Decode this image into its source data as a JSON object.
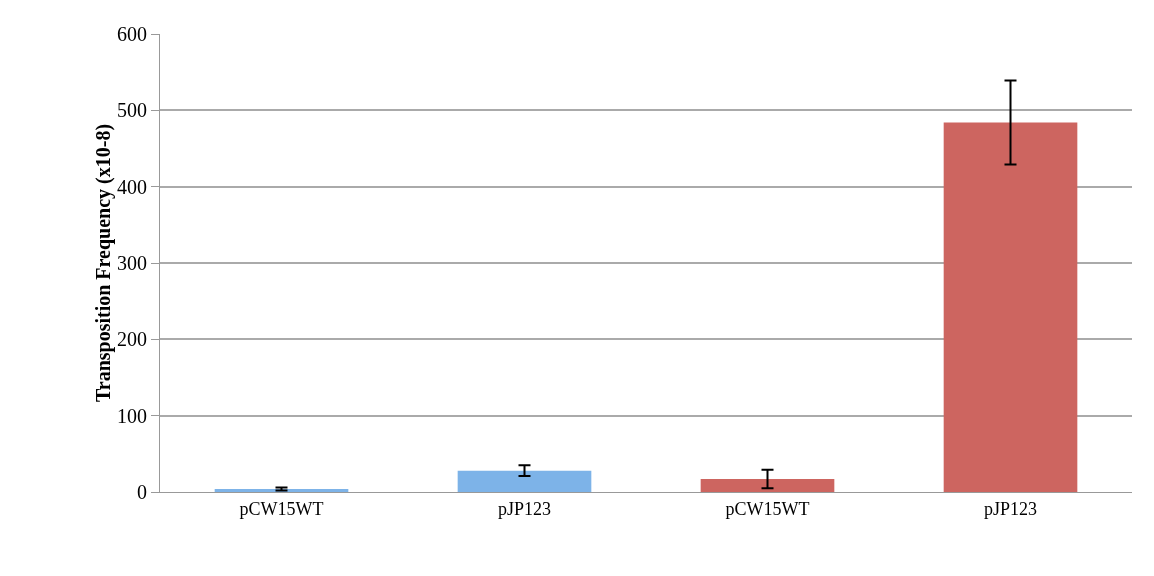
{
  "chart_data": {
    "type": "bar",
    "ylabel": "Transposition Frequency (x10-8)",
    "categories": [
      "pCW15WT",
      "pJP123",
      "pCW15WT",
      "pJP123"
    ],
    "values": [
      4,
      28,
      17,
      484
    ],
    "colors": [
      "#7db3e8",
      "#7db3e8",
      "#cd6560",
      "#cd6560"
    ],
    "errors": [
      2,
      7,
      12,
      55
    ],
    "ylim": [
      0,
      600
    ],
    "yticks": [
      0,
      100,
      200,
      300,
      400,
      500,
      600
    ],
    "grid": "y"
  }
}
